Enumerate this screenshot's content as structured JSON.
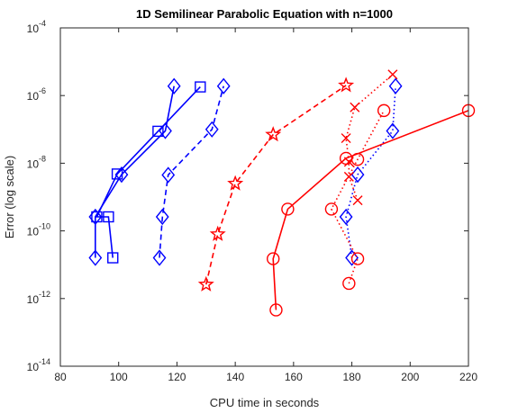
{
  "chart_data": {
    "type": "line",
    "title": "1D Semilinear Parabolic Equation with n=1000",
    "xlabel": "CPU time in seconds",
    "ylabel": "Error (log scale)",
    "xlim": [
      80,
      220
    ],
    "ylim": [
      1e-14,
      0.0001
    ],
    "yscale": "log",
    "grid": false,
    "x_ticks": [
      80,
      100,
      120,
      140,
      160,
      180,
      200,
      220
    ],
    "y_ticks": [
      {
        "value": 1e-14,
        "base": "10",
        "exp": "-14"
      },
      {
        "value": 1e-12,
        "base": "10",
        "exp": "-12"
      },
      {
        "value": 1e-10,
        "base": "10",
        "exp": "-10"
      },
      {
        "value": 1e-08,
        "base": "10",
        "exp": "-8"
      },
      {
        "value": 1e-06,
        "base": "10",
        "exp": "-6"
      },
      {
        "value": 0.0001,
        "base": "10",
        "exp": "-4"
      }
    ],
    "series": [
      {
        "color": "#0000FF",
        "line": "solid",
        "marker": "square",
        "x": [
          98,
          96.5,
          92.5,
          99.5,
          113.5,
          128
        ],
        "y": [
          1.6e-11,
          2.6e-10,
          2.6e-10,
          4.8e-09,
          8.8e-08,
          1.8e-06
        ]
      },
      {
        "color": "#0000FF",
        "line": "solid",
        "marker": "diamond",
        "x": [
          92,
          92,
          101,
          116,
          119
        ],
        "y": [
          1.6e-11,
          2.6e-10,
          4.6e-09,
          9e-08,
          1.9e-06
        ]
      },
      {
        "color": "#0000FF",
        "line": "dashed",
        "marker": "diamond",
        "x": [
          114,
          115,
          117,
          132,
          136
        ],
        "y": [
          1.6e-11,
          2.6e-10,
          4.5e-09,
          1e-07,
          1.9e-06
        ]
      },
      {
        "color": "#0000FF",
        "line": "dotted",
        "marker": "diamond",
        "x": [
          180,
          178,
          182,
          194,
          195
        ],
        "y": [
          1.6e-11,
          2.6e-10,
          4.6e-09,
          9e-08,
          1.9e-06
        ]
      },
      {
        "color": "#FF0000",
        "line": "dashed",
        "marker": "star",
        "x": [
          130,
          134,
          140,
          153,
          178
        ],
        "y": [
          2.6e-12,
          8e-11,
          2.5e-09,
          7e-08,
          2e-06
        ]
      },
      {
        "color": "#FF0000",
        "line": "solid",
        "marker": "circle",
        "x": [
          154,
          153,
          158,
          178,
          220
        ],
        "y": [
          4.6e-13,
          1.5e-11,
          4.4e-10,
          1.4e-08,
          3.6e-07
        ]
      },
      {
        "color": "#FF0000",
        "line": "dotted",
        "marker": "circle",
        "x": [
          179,
          182,
          173,
          182,
          191
        ],
        "y": [
          2.8e-12,
          1.5e-11,
          4.4e-10,
          1.3e-08,
          3.6e-07
        ]
      },
      {
        "color": "#FF0000",
        "line": "dotted",
        "marker": "x",
        "x": [
          182,
          179,
          179,
          178,
          181,
          194
        ],
        "y": [
          8e-10,
          4e-09,
          1.1e-08,
          5.5e-08,
          4.5e-07,
          4.2e-06
        ]
      }
    ]
  }
}
